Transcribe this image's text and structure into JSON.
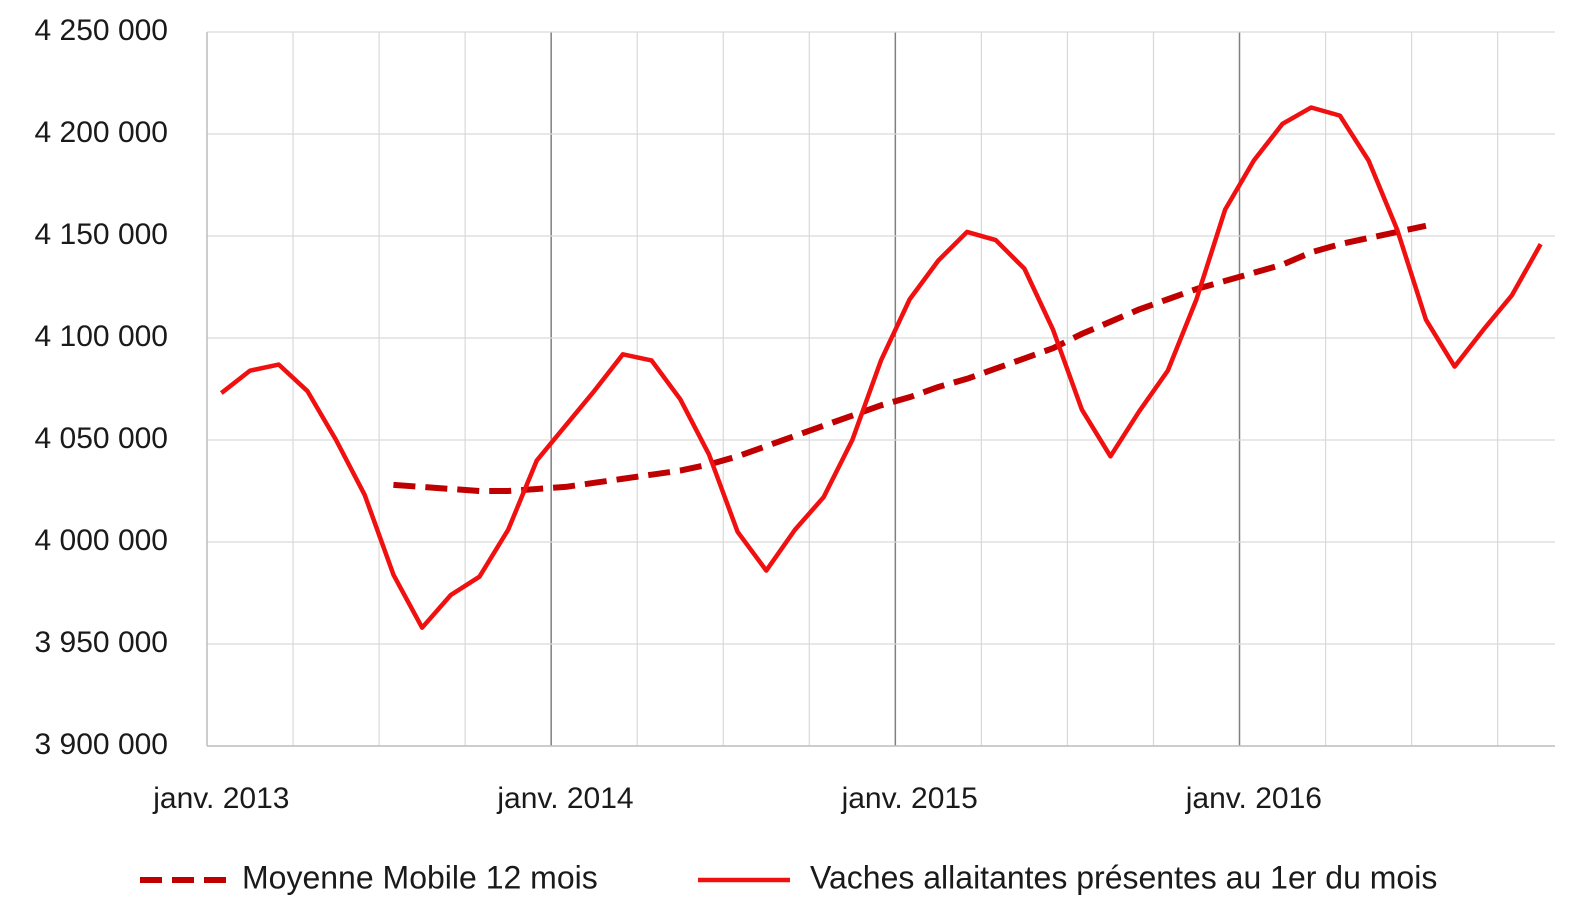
{
  "chart_data": {
    "type": "line",
    "categories": [
      "janv. 2013",
      null,
      null,
      null,
      null,
      null,
      null,
      null,
      null,
      null,
      null,
      null,
      "janv. 2014",
      null,
      null,
      null,
      null,
      null,
      null,
      null,
      null,
      null,
      null,
      null,
      "janv. 2015",
      null,
      null,
      null,
      null,
      null,
      null,
      null,
      null,
      null,
      null,
      null,
      "janv. 2016",
      null,
      null,
      null,
      null,
      null,
      null,
      null,
      null,
      null,
      null
    ],
    "series": [
      {
        "name": "Moyenne Mobile 12 mois",
        "color": "#c00000",
        "dashed": true,
        "values": [
          null,
          null,
          null,
          null,
          null,
          null,
          4028000,
          4027000,
          4026000,
          4025000,
          4025000,
          4026000,
          4027000,
          4029000,
          4031000,
          4033000,
          4035000,
          4038000,
          4042000,
          4047000,
          4052000,
          4057000,
          4062000,
          4067000,
          4071000,
          4076000,
          4080000,
          4085000,
          4090000,
          4095000,
          4102000,
          4108000,
          4114000,
          4119000,
          4124000,
          4128000,
          4132000,
          4136000,
          4142000,
          4146000,
          4149000,
          4152000,
          4155000,
          null,
          null,
          null,
          null
        ]
      },
      {
        "name": "Vaches allaitantes présentes au 1er du mois",
        "color": "#f01010",
        "dashed": false,
        "values": [
          4073000,
          4084000,
          4087000,
          4074000,
          4050000,
          4023000,
          3984000,
          3958000,
          3974000,
          3983000,
          4006000,
          4040000,
          4057000,
          4074000,
          4092000,
          4089000,
          4070000,
          4043000,
          4005000,
          3986000,
          4006000,
          4022000,
          4050000,
          4089000,
          4119000,
          4138000,
          4152000,
          4148000,
          4134000,
          4104000,
          4065000,
          4042000,
          4064000,
          4084000,
          4119000,
          4163000,
          4187000,
          4205000,
          4213000,
          4209000,
          4187000,
          4153000,
          4109000,
          4086000,
          4104000,
          4121000,
          4146000
        ]
      }
    ],
    "ylim": [
      3900000,
      4250000
    ],
    "yticks": [
      {
        "value": 3900000,
        "label": "3 900 000"
      },
      {
        "value": 3950000,
        "label": "3 950 000"
      },
      {
        "value": 4000000,
        "label": "4 000 000"
      },
      {
        "value": 4050000,
        "label": "4 050 000"
      },
      {
        "value": 4100000,
        "label": "4 100 000"
      },
      {
        "value": 4150000,
        "label": "4 150 000"
      },
      {
        "value": 4200000,
        "label": "4 200 000"
      },
      {
        "value": 4250000,
        "label": "4 250 000"
      }
    ],
    "grid": true,
    "legend": "bottom"
  }
}
